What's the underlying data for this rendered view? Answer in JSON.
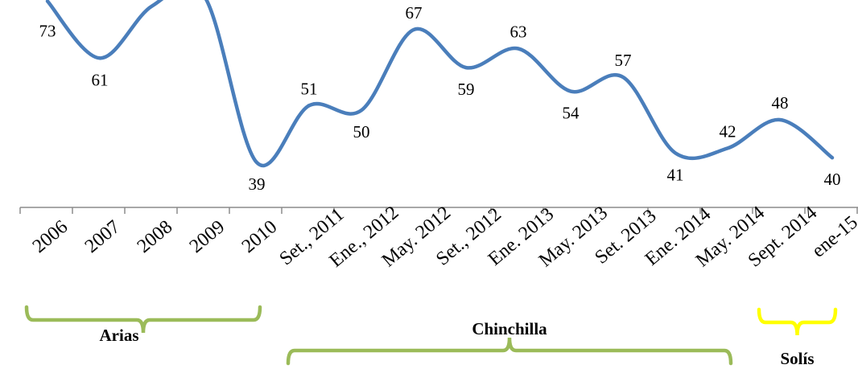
{
  "chart_data": {
    "type": "line",
    "title": "",
    "xlabel": "",
    "ylabel": "",
    "grid": false,
    "legend": "none",
    "categories": [
      "2006",
      "2007",
      "2008",
      "2009",
      "2010",
      "Set., 2011",
      "Ene., 2012",
      "May. 2012",
      "Set., 2012",
      "Ene. 2013",
      "May. 2013",
      "Set. 2013",
      "Ene. 2014",
      "May. 2014",
      "Sept. 2014",
      "ene-15"
    ],
    "series": [
      {
        "values": [
          73,
          61,
          72,
          74,
          39,
          51,
          50,
          67,
          59,
          63,
          54,
          57,
          41,
          42,
          48,
          40
        ],
        "color": "#4A7EBB"
      }
    ],
    "annotations": [
      {
        "label": "Arias",
        "color": "#9BBB59",
        "spans": [
          "2006",
          "2010"
        ]
      },
      {
        "label": "Chinchilla",
        "color": "#9BBB59",
        "spans": [
          "Set., 2011",
          "May. 2014"
        ]
      },
      {
        "label": "Solís",
        "color": "#FFFF00",
        "spans": [
          "Sept. 2014",
          "ene-15"
        ]
      }
    ]
  }
}
